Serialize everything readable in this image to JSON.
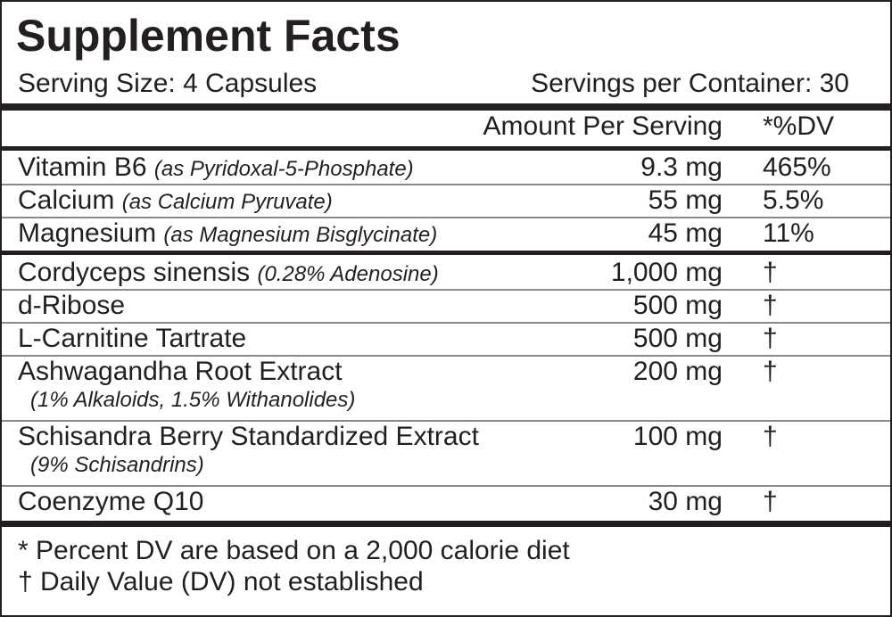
{
  "title": "Supplement Facts",
  "serving_size": "Serving Size: 4 Capsules",
  "servings_per_container": "Servings per Container: 30",
  "header": {
    "amount": "Amount Per Serving",
    "dv": "*%DV"
  },
  "groups": [
    {
      "rows": [
        {
          "name": "Vitamin B6",
          "note": "(as Pyridoxal-5-Phosphate)",
          "amount": "9.3 mg",
          "dv": "465%"
        },
        {
          "name": "Calcium",
          "note": "(as Calcium Pyruvate)",
          "amount": "55 mg",
          "dv": "5.5%"
        },
        {
          "name": "Magnesium",
          "note": "(as Magnesium Bisglycinate)",
          "amount": "45 mg",
          "dv": "11%"
        }
      ]
    },
    {
      "rows": [
        {
          "name": "Cordyceps sinensis",
          "note": "(0.28% Adenosine)",
          "amount": "1,000 mg",
          "dv": "†"
        },
        {
          "name": "d-Ribose",
          "amount": "500 mg",
          "dv": "†"
        },
        {
          "name": "L-Carnitine Tartrate",
          "amount": "500 mg",
          "dv": "†"
        },
        {
          "name": "Ashwagandha Root Extract",
          "subnote": "(1% Alkaloids, 1.5% Withanolides)",
          "amount": "200 mg",
          "dv": "†"
        },
        {
          "name": "Schisandra Berry Standardized Extract",
          "subnote": "(9% Schisandrins)",
          "amount": "100 mg",
          "dv": "†"
        },
        {
          "name": "Coenzyme Q10",
          "amount": "30 mg",
          "dv": "†"
        }
      ]
    }
  ],
  "footnotes": [
    "* Percent DV are based on a 2,000 calorie diet",
    "† Daily Value (DV) not established"
  ]
}
